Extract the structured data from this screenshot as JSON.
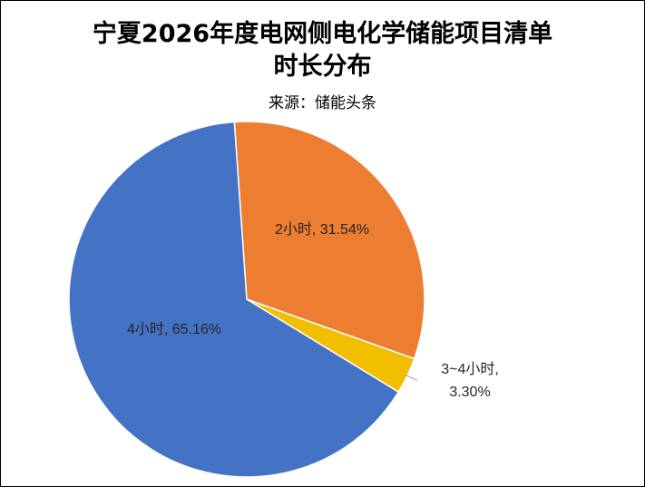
{
  "chart_data": {
    "type": "pie",
    "title_line1": "宁夏2026年度电网侧电化学储能项目清单",
    "title_line2": "时长分布",
    "subtitle": "来源：储能头条",
    "slices": [
      {
        "category": "2小时",
        "value": 31.54,
        "label": "2小时, 31.54%",
        "color": "#ED7D31"
      },
      {
        "category": "3~4小时",
        "value": 3.3,
        "label_line1": "3~4小时,",
        "label_line2": "3.30%",
        "color": "#F2BE00"
      },
      {
        "category": "4小时",
        "value": 65.16,
        "label": "4小时, 65.16%",
        "color": "#4472C4"
      }
    ],
    "start_angle_deg": -4
  }
}
